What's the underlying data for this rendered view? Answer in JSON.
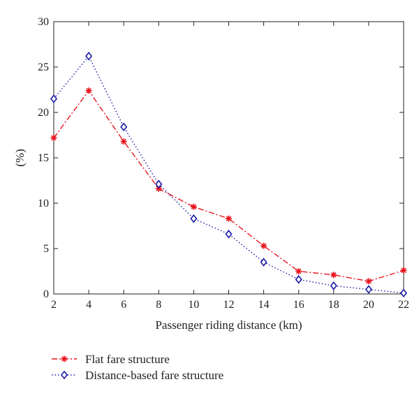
{
  "chart_data": {
    "type": "line",
    "title": "",
    "xlabel": "Passenger riding distance (km)",
    "ylabel": "(%)",
    "xlim": [
      2,
      22
    ],
    "ylim": [
      0,
      30
    ],
    "x_ticks": [
      2,
      4,
      6,
      8,
      10,
      12,
      14,
      16,
      18,
      20,
      22
    ],
    "y_ticks": [
      0,
      5,
      10,
      15,
      20,
      25,
      30
    ],
    "grid": false,
    "legend_position": "below-left",
    "x": [
      2,
      4,
      6,
      8,
      10,
      12,
      14,
      16,
      18,
      20,
      22
    ],
    "series": [
      {
        "name": "Flat fare structure",
        "color": "#e8141e",
        "line_style": "dash-dot",
        "marker": "asterisk",
        "values": [
          17.2,
          22.4,
          16.8,
          11.6,
          9.6,
          8.3,
          5.3,
          2.5,
          2.1,
          1.4,
          2.6
        ]
      },
      {
        "name": "Distance-based fare structure",
        "color": "#1a1aa6",
        "line_style": "dotted",
        "marker": "diamond",
        "values": [
          21.5,
          26.2,
          18.4,
          12.1,
          8.3,
          6.6,
          3.5,
          1.6,
          0.9,
          0.5,
          0.1
        ]
      }
    ]
  }
}
